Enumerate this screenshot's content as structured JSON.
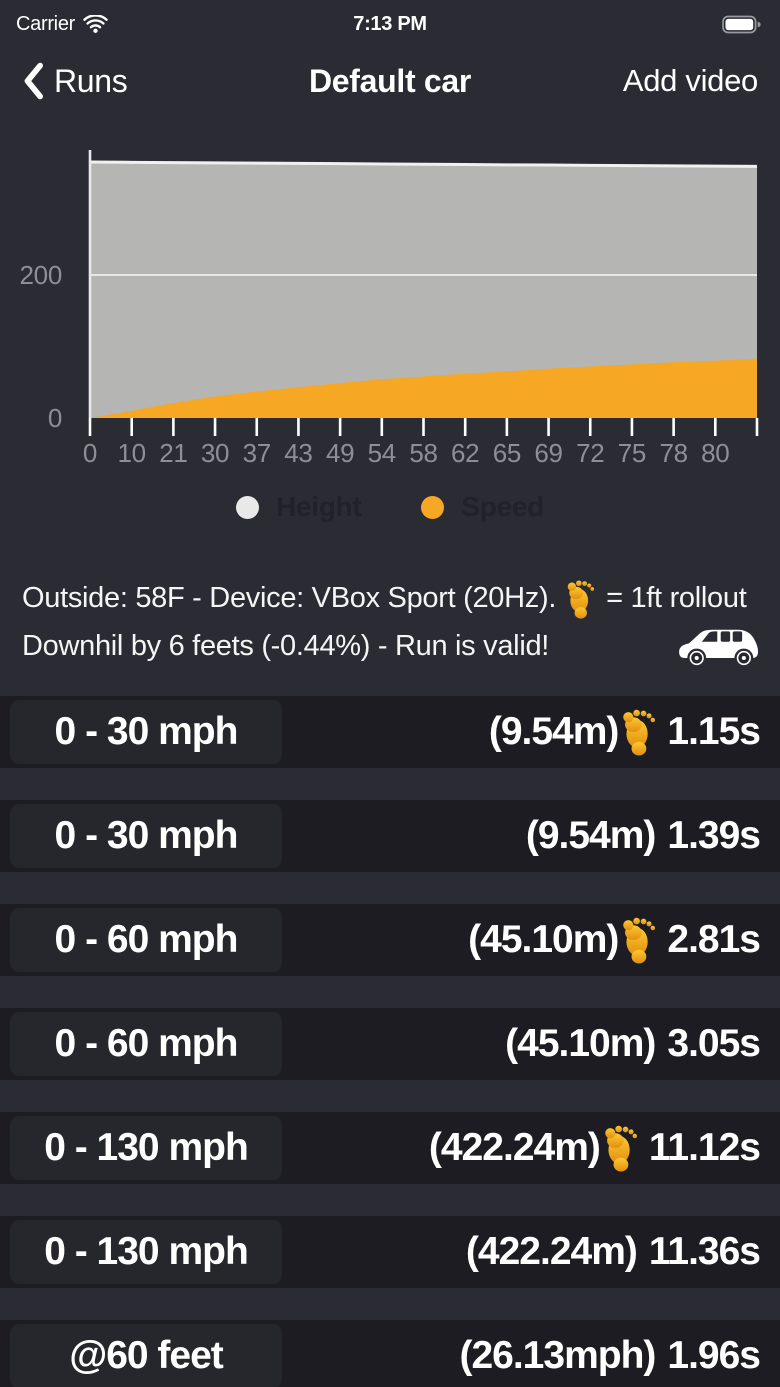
{
  "status_bar": {
    "carrier": "Carrier",
    "time": "7:13 PM"
  },
  "nav": {
    "back_label": "Runs",
    "title": "Default car",
    "action_label": "Add video"
  },
  "chart_data": {
    "type": "area",
    "title": "",
    "xlabel": "",
    "ylabel": "",
    "x_tick_labels": [
      "0",
      "10",
      "21",
      "30",
      "37",
      "43",
      "49",
      "54",
      "58",
      "62",
      "65",
      "69",
      "72",
      "75",
      "78",
      "80",
      ""
    ],
    "yticks": [
      0,
      200
    ],
    "ylim": [
      0,
      375
    ],
    "grid": true,
    "legend_position": "bottom",
    "series": [
      {
        "name": "Height",
        "line_color": "#f0f0ee",
        "fill_color": "#b5b5b3",
        "values": [
          358,
          357.6,
          357.2,
          356.8,
          356.5,
          356.1,
          355.7,
          355.3,
          354.9,
          354.5,
          354.1,
          353.8,
          353.4,
          353,
          352.6,
          352.2,
          352
        ]
      },
      {
        "name": "Speed",
        "line_color": "#f6a723",
        "fill_color": "#f6a723",
        "values": [
          0,
          10,
          21,
          30,
          37,
          43,
          49,
          54,
          58,
          62,
          65,
          69,
          72,
          75,
          78,
          80,
          83
        ]
      }
    ],
    "axis_label_color": "#8e8e96",
    "axis_line_color": "#e9e9e9"
  },
  "legend": {
    "items": [
      {
        "label": "Height",
        "color": "#e9e9e9"
      },
      {
        "label": "Speed",
        "color": "#f6a723"
      }
    ]
  },
  "info": {
    "line1_prefix": "Outside: 58F - Device: VBox Sport (20Hz).",
    "line1_suffix": "= 1ft rollout",
    "line2": "Downhil by 6 feets (-0.44%) - Run is valid!"
  },
  "runs": [
    {
      "label": "0 - 30 mph",
      "distance": "(9.54m)",
      "rollout": true,
      "time": "1.15s"
    },
    {
      "label": "0 - 30 mph",
      "distance": "(9.54m)",
      "rollout": false,
      "time": "1.39s"
    },
    {
      "label": "0 - 60 mph",
      "distance": "(45.10m)",
      "rollout": true,
      "time": "2.81s"
    },
    {
      "label": "0 - 60 mph",
      "distance": "(45.10m)",
      "rollout": false,
      "time": "3.05s"
    },
    {
      "label": "0 - 130 mph",
      "distance": "(422.24m)",
      "rollout": true,
      "time": "11.12s"
    },
    {
      "label": "0 - 130 mph",
      "distance": "(422.24m)",
      "rollout": false,
      "time": "11.36s"
    },
    {
      "label": "@60 feet",
      "distance": "(26.13mph)",
      "rollout": false,
      "time": "1.96s"
    }
  ],
  "colors": {
    "page_bg": "#2b2b33",
    "row_bg": "#1c1c22",
    "chip_bg": "#26262d",
    "accent_orange": "#f6a723",
    "height_gray": "#b5b5b3",
    "legend_label": "#212127"
  }
}
